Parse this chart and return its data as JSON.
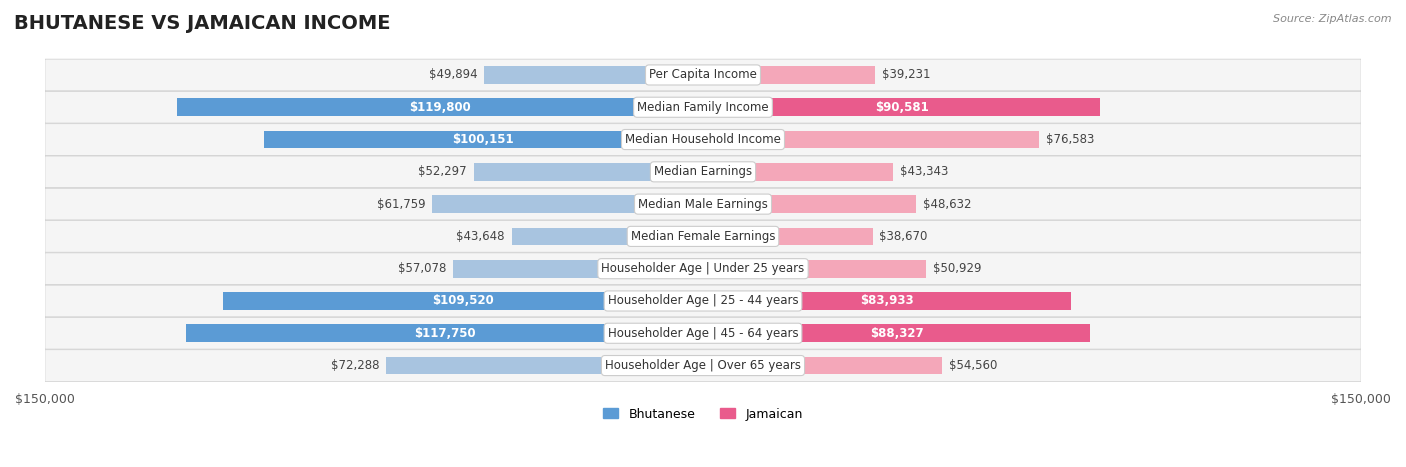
{
  "title": "BHUTANESE VS JAMAICAN INCOME",
  "source": "Source: ZipAtlas.com",
  "categories": [
    "Per Capita Income",
    "Median Family Income",
    "Median Household Income",
    "Median Earnings",
    "Median Male Earnings",
    "Median Female Earnings",
    "Householder Age | Under 25 years",
    "Householder Age | 25 - 44 years",
    "Householder Age | 45 - 64 years",
    "Householder Age | Over 65 years"
  ],
  "bhutanese_values": [
    49894,
    119800,
    100151,
    52297,
    61759,
    43648,
    57078,
    109520,
    117750,
    72288
  ],
  "jamaican_values": [
    39231,
    90581,
    76583,
    43343,
    48632,
    38670,
    50929,
    83933,
    88327,
    54560
  ],
  "bhutanese_labels": [
    "$49,894",
    "$119,800",
    "$100,151",
    "$52,297",
    "$61,759",
    "$43,648",
    "$57,078",
    "$109,520",
    "$117,750",
    "$72,288"
  ],
  "jamaican_labels": [
    "$39,231",
    "$90,581",
    "$76,583",
    "$43,343",
    "$48,632",
    "$38,670",
    "$50,929",
    "$83,933",
    "$88,327",
    "$54,560"
  ],
  "bhutanese_color_light": "#a8c4e0",
  "bhutanese_color_strong": "#5b9bd5",
  "jamaican_color_light": "#f4a7b9",
  "jamaican_color_strong": "#e95b8c",
  "max_value": 150000,
  "bg_row_color": "#f0f0f0",
  "bg_color": "#ffffff",
  "label_threshold": 80000,
  "title_fontsize": 14,
  "axis_fontsize": 9,
  "bar_label_fontsize": 8.5,
  "category_fontsize": 8.5
}
